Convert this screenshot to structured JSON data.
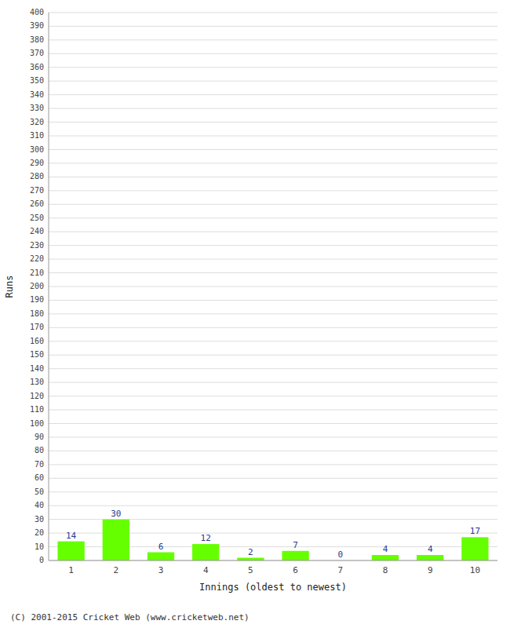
{
  "chart_data": {
    "type": "bar",
    "xlabel": "Innings (oldest to newest)",
    "ylabel": "Runs",
    "categories": [
      "1",
      "2",
      "3",
      "4",
      "5",
      "6",
      "7",
      "8",
      "9",
      "10"
    ],
    "values": [
      14,
      30,
      6,
      12,
      2,
      7,
      0,
      4,
      4,
      17
    ],
    "color": "#66ff00",
    "ylim": [
      0,
      400
    ],
    "yticks": [
      0,
      10,
      20,
      30,
      40,
      50,
      60,
      70,
      80,
      90,
      100,
      110,
      120,
      130,
      140,
      150,
      160,
      170,
      180,
      190,
      200,
      210,
      220,
      230,
      240,
      250,
      260,
      270,
      280,
      290,
      300,
      310,
      320,
      330,
      340,
      350,
      360,
      370,
      380,
      390,
      400
    ],
    "grid": true,
    "data_labels": true,
    "annotations": [
      "(C) 2001-2015 Cricket Web (www.cricketweb.net)"
    ]
  }
}
